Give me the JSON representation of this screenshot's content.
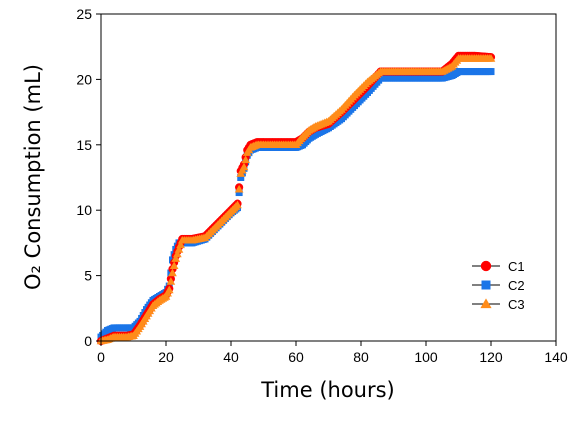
{
  "chart_data": {
    "type": "scatter",
    "title": "",
    "xlabel": "Time (hours)",
    "ylabel": "O₂ Consumption (mL)",
    "xlim": [
      0,
      140
    ],
    "ylim": [
      0,
      25
    ],
    "xticks": [
      "0",
      "20",
      "40",
      "60",
      "80",
      "100",
      "120",
      "140"
    ],
    "yticks": [
      "0",
      "5",
      "10",
      "15",
      "20",
      "25"
    ],
    "grid": false,
    "legend": "bottom-right",
    "series": [
      {
        "name": "C1",
        "marker": "circle",
        "color": "#ff0000",
        "x": [
          0,
          2,
          4,
          8,
          10,
          12,
          14,
          16,
          18,
          20,
          21,
          22,
          23,
          24,
          25,
          28,
          32,
          36,
          40,
          42,
          43,
          44,
          45,
          46,
          48,
          50,
          55,
          60,
          62,
          64,
          66,
          70,
          74,
          78,
          82,
          86,
          90,
          95,
          100,
          105,
          108,
          110,
          115,
          120
        ],
        "y": [
          0,
          0.2,
          0.4,
          0.4,
          0.5,
          1.2,
          2.0,
          2.8,
          3.2,
          3.5,
          4.0,
          5.5,
          6.5,
          7.2,
          7.8,
          7.8,
          8.0,
          9.0,
          10.0,
          10.5,
          13.0,
          13.5,
          14.6,
          15.0,
          15.2,
          15.2,
          15.2,
          15.2,
          15.5,
          16.0,
          16.3,
          16.6,
          17.5,
          18.5,
          19.5,
          20.6,
          20.6,
          20.6,
          20.6,
          20.6,
          21.2,
          21.8,
          21.8,
          21.7
        ]
      },
      {
        "name": "C2",
        "marker": "square",
        "color": "#1a75e8",
        "x": [
          0,
          2,
          4,
          8,
          10,
          12,
          14,
          16,
          18,
          20,
          21,
          22,
          23,
          24,
          25,
          28,
          32,
          36,
          40,
          42,
          43,
          44,
          45,
          46,
          48,
          50,
          55,
          60,
          62,
          64,
          66,
          70,
          74,
          78,
          82,
          86,
          90,
          95,
          100,
          105,
          108,
          110,
          115,
          120
        ],
        "y": [
          0.3,
          0.8,
          1.0,
          1.0,
          1.0,
          1.5,
          2.4,
          3.1,
          3.4,
          3.7,
          4.2,
          6.2,
          7.0,
          7.5,
          7.5,
          7.5,
          7.8,
          8.8,
          9.8,
          10.2,
          12.5,
          13.2,
          14.2,
          14.6,
          14.8,
          14.8,
          14.8,
          14.8,
          15.0,
          15.5,
          15.8,
          16.3,
          17.0,
          18.0,
          19.0,
          20.1,
          20.1,
          20.1,
          20.1,
          20.1,
          20.3,
          20.6,
          20.6,
          20.6
        ]
      },
      {
        "name": "C3",
        "marker": "triangle",
        "color": "#ff8c1a",
        "x": [
          0,
          2,
          4,
          8,
          10,
          12,
          14,
          16,
          18,
          20,
          21,
          22,
          23,
          24,
          25,
          28,
          32,
          36,
          40,
          42,
          43,
          44,
          45,
          46,
          48,
          50,
          55,
          60,
          62,
          64,
          66,
          70,
          74,
          78,
          82,
          86,
          90,
          95,
          100,
          105,
          108,
          110,
          115,
          120
        ],
        "y": [
          0,
          0.1,
          0.3,
          0.3,
          0.4,
          1.1,
          1.9,
          2.7,
          3.1,
          3.4,
          3.9,
          5.2,
          6.3,
          7.0,
          7.7,
          7.7,
          7.9,
          8.9,
          9.9,
          10.4,
          12.8,
          13.3,
          14.4,
          14.8,
          15.0,
          15.0,
          15.0,
          15.0,
          15.6,
          16.1,
          16.4,
          16.8,
          17.7,
          18.8,
          19.8,
          20.6,
          20.6,
          20.6,
          20.6,
          20.6,
          21.0,
          21.6,
          21.6,
          21.6
        ]
      }
    ]
  }
}
